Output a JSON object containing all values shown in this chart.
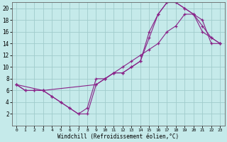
{
  "xlabel": "Windchill (Refroidissement éolien,°C)",
  "bg_color": "#c5eaea",
  "grid_color": "#a0cccc",
  "line_color": "#882288",
  "xlim_min": -0.5,
  "xlim_max": 23.5,
  "ylim_min": 0,
  "ylim_max": 21,
  "xtick_labels": [
    "0",
    "1",
    "2",
    "3",
    "4",
    "5",
    "6",
    "7",
    "8",
    "9",
    "10",
    "11",
    "12",
    "13",
    "14",
    "15",
    "16",
    "17",
    "18",
    "19",
    "20",
    "21",
    "22",
    "23"
  ],
  "ytick_labels": [
    "2",
    "4",
    "6",
    "8",
    "10",
    "12",
    "14",
    "16",
    "18",
    "20"
  ],
  "xtick_vals": [
    0,
    1,
    2,
    3,
    4,
    5,
    6,
    7,
    8,
    9,
    10,
    11,
    12,
    13,
    14,
    15,
    16,
    17,
    18,
    19,
    20,
    21,
    22,
    23
  ],
  "ytick_vals": [
    2,
    4,
    6,
    8,
    10,
    12,
    14,
    16,
    18,
    20
  ],
  "line1_x": [
    0,
    1,
    2,
    3,
    4,
    5,
    6,
    7,
    8,
    9,
    10,
    11,
    12,
    13,
    14,
    15,
    16,
    17,
    18,
    19,
    20,
    21,
    22,
    23
  ],
  "line1_y": [
    7,
    6,
    6,
    6,
    5,
    4,
    3,
    2,
    2,
    7,
    8,
    9,
    9,
    10,
    11,
    15,
    19,
    21,
    21,
    20,
    19,
    16,
    15,
    14
  ],
  "line2_x": [
    0,
    1,
    2,
    3,
    4,
    5,
    6,
    7,
    8,
    9,
    10,
    11,
    12,
    13,
    14,
    15,
    16,
    17,
    18,
    19,
    20,
    21,
    22,
    23
  ],
  "line2_y": [
    7,
    6,
    6,
    6,
    5,
    4,
    3,
    2,
    3,
    8,
    8,
    9,
    9,
    10,
    11,
    16,
    19,
    21,
    21,
    20,
    19,
    17,
    15,
    14
  ],
  "line3_x": [
    0,
    3,
    9,
    10,
    11,
    12,
    13,
    14,
    15,
    16,
    17,
    18,
    19,
    20,
    21,
    22,
    23
  ],
  "line3_y": [
    7,
    6,
    7,
    8,
    9,
    10,
    11,
    12,
    13,
    14,
    16,
    17,
    19,
    19,
    18,
    14,
    14
  ]
}
